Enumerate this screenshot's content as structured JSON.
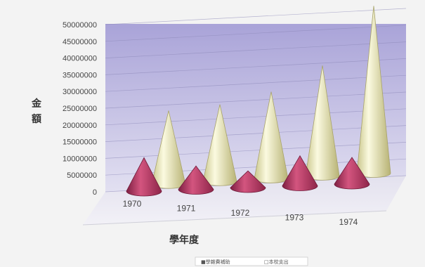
{
  "chart_data": {
    "type": "bar",
    "shape": "3d-cone",
    "categories": [
      "1970",
      "1971",
      "1972",
      "1973",
      "1974"
    ],
    "series": [
      {
        "name": "■學雜費補助",
        "color": "#b63a62",
        "values": [
          10000000,
          7000000,
          5000000,
          9000000,
          8000000
        ]
      },
      {
        "name": "□本校支出",
        "color": "#ecebb4",
        "values": [
          22000000,
          23000000,
          26000000,
          33000000,
          50000000
        ]
      }
    ],
    "yticks": [
      "0",
      "5000000",
      "10000000",
      "15000000",
      "20000000",
      "25000000",
      "30000000",
      "35000000",
      "40000000",
      "45000000",
      "50000000"
    ],
    "ylim": [
      0,
      50000000
    ],
    "ylabel": "金額",
    "xlabel": "學年度",
    "grid": true,
    "legend": "bottom"
  }
}
